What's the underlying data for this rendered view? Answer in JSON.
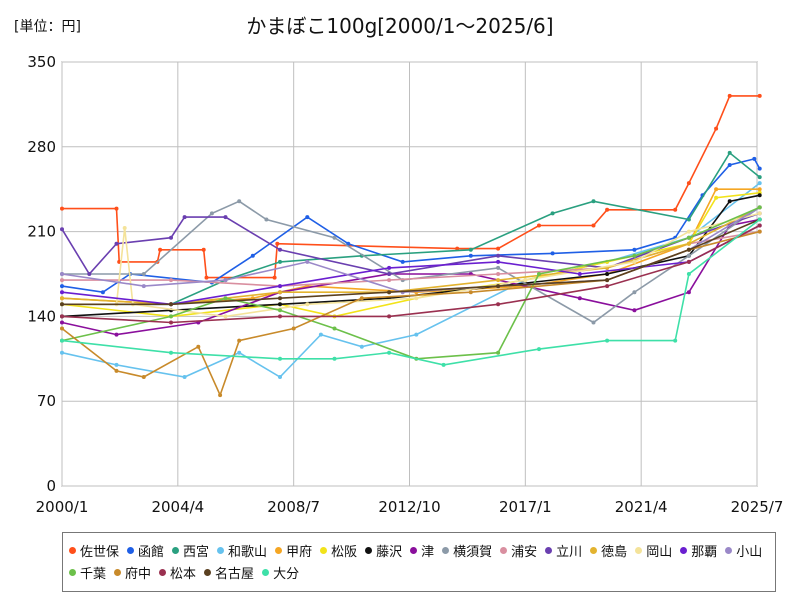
{
  "chart_data": {
    "type": "line",
    "title": "かまぼこ100g[2000/1～2025/6]",
    "unit_label": "[単位：円]",
    "xlabel": "",
    "ylabel": "",
    "x_ticks": [
      "2000/1",
      "2004/4",
      "2008/7",
      "2012/10",
      "2017/1",
      "2021/4",
      "2025/7"
    ],
    "y_ticks": [
      0,
      70,
      140,
      210,
      280,
      350
    ],
    "xlim": [
      "2000/1",
      "2025/7"
    ],
    "ylim": [
      0,
      350
    ],
    "grid": true,
    "legend_position": "bottom",
    "series": [
      {
        "name": "佐世保",
        "color": "#ff4f1a",
        "values": [
          [
            2000.0,
            229
          ],
          [
            2002.0,
            229
          ],
          [
            2002.1,
            185
          ],
          [
            2003.5,
            185
          ],
          [
            2003.6,
            195
          ],
          [
            2005.2,
            195
          ],
          [
            2005.3,
            172
          ],
          [
            2007.8,
            172
          ],
          [
            2007.9,
            200
          ],
          [
            2014.5,
            196
          ],
          [
            2016.0,
            196
          ],
          [
            2017.5,
            215
          ],
          [
            2019.5,
            215
          ],
          [
            2020.0,
            228
          ],
          [
            2022.5,
            228
          ],
          [
            2023.0,
            250
          ],
          [
            2024.0,
            295
          ],
          [
            2024.5,
            322
          ],
          [
            2025.6,
            322
          ]
        ]
      },
      {
        "name": "函館",
        "color": "#1f5fe6",
        "values": [
          [
            2000.0,
            165
          ],
          [
            2001.5,
            160
          ],
          [
            2002.5,
            175
          ],
          [
            2005.5,
            168
          ],
          [
            2007.0,
            190
          ],
          [
            2009.0,
            222
          ],
          [
            2010.5,
            200
          ],
          [
            2012.5,
            185
          ],
          [
            2015.0,
            190
          ],
          [
            2018.0,
            192
          ],
          [
            2021.0,
            195
          ],
          [
            2022.5,
            205
          ],
          [
            2023.5,
            240
          ],
          [
            2024.5,
            265
          ],
          [
            2025.4,
            270
          ],
          [
            2025.6,
            262
          ]
        ]
      },
      {
        "name": "西宮",
        "color": "#2aa080",
        "values": [
          [
            2000.0,
            150
          ],
          [
            2004.0,
            150
          ],
          [
            2006.0,
            170
          ],
          [
            2008.0,
            185
          ],
          [
            2011.0,
            190
          ],
          [
            2015.0,
            195
          ],
          [
            2018.0,
            225
          ],
          [
            2019.5,
            235
          ],
          [
            2023.0,
            220
          ],
          [
            2024.5,
            275
          ],
          [
            2025.6,
            255
          ]
        ]
      },
      {
        "name": "和歌山",
        "color": "#66c2ee",
        "values": [
          [
            2000.0,
            110
          ],
          [
            2002.0,
            100
          ],
          [
            2004.5,
            90
          ],
          [
            2006.5,
            110
          ],
          [
            2008.0,
            90
          ],
          [
            2009.5,
            125
          ],
          [
            2011.0,
            115
          ],
          [
            2013.0,
            125
          ],
          [
            2017.0,
            170
          ],
          [
            2020.0,
            185
          ],
          [
            2023.0,
            205
          ],
          [
            2025.6,
            250
          ]
        ]
      },
      {
        "name": "甲府",
        "color": "#f5a623",
        "values": [
          [
            2000.0,
            155
          ],
          [
            2004.0,
            150
          ],
          [
            2007.0,
            155
          ],
          [
            2009.0,
            165
          ],
          [
            2013.0,
            160
          ],
          [
            2017.0,
            165
          ],
          [
            2020.0,
            175
          ],
          [
            2023.0,
            200
          ],
          [
            2024.0,
            245
          ],
          [
            2025.6,
            245
          ]
        ]
      },
      {
        "name": "松阪",
        "color": "#f2e31a",
        "values": [
          [
            2000.0,
            150
          ],
          [
            2004.0,
            140
          ],
          [
            2008.0,
            150
          ],
          [
            2010.0,
            140
          ],
          [
            2014.0,
            160
          ],
          [
            2017.0,
            170
          ],
          [
            2020.0,
            185
          ],
          [
            2023.0,
            200
          ],
          [
            2024.0,
            238
          ],
          [
            2025.6,
            242
          ]
        ]
      },
      {
        "name": "藤沢",
        "color": "#111111",
        "values": [
          [
            2000.0,
            140
          ],
          [
            2004.0,
            145
          ],
          [
            2008.0,
            150
          ],
          [
            2012.0,
            155
          ],
          [
            2016.0,
            165
          ],
          [
            2020.0,
            175
          ],
          [
            2023.0,
            190
          ],
          [
            2024.5,
            235
          ],
          [
            2025.6,
            240
          ]
        ]
      },
      {
        "name": "津",
        "color": "#8a0f9c",
        "values": [
          [
            2000.0,
            135
          ],
          [
            2002.0,
            125
          ],
          [
            2005.0,
            135
          ],
          [
            2008.0,
            160
          ],
          [
            2012.0,
            175
          ],
          [
            2015.0,
            175
          ],
          [
            2019.0,
            155
          ],
          [
            2021.0,
            145
          ],
          [
            2023.0,
            160
          ],
          [
            2024.5,
            215
          ],
          [
            2025.6,
            220
          ]
        ]
      },
      {
        "name": "横須賀",
        "color": "#8c9aa8",
        "values": [
          [
            2000.0,
            175
          ],
          [
            2003.0,
            175
          ],
          [
            2005.5,
            225
          ],
          [
            2006.5,
            235
          ],
          [
            2007.5,
            220
          ],
          [
            2010.0,
            205
          ],
          [
            2012.5,
            170
          ],
          [
            2016.0,
            180
          ],
          [
            2019.5,
            135
          ],
          [
            2021.0,
            160
          ],
          [
            2023.0,
            190
          ],
          [
            2025.6,
            230
          ]
        ]
      },
      {
        "name": "浦安",
        "color": "#d98fa0",
        "values": [
          [
            2000.0,
            170
          ],
          [
            2004.0,
            170
          ],
          [
            2008.0,
            165
          ],
          [
            2012.0,
            170
          ],
          [
            2016.0,
            175
          ],
          [
            2020.0,
            180
          ],
          [
            2023.0,
            200
          ],
          [
            2025.6,
            210
          ]
        ]
      },
      {
        "name": "立川",
        "color": "#6a3fb0",
        "values": [
          [
            2000.0,
            212
          ],
          [
            2001.0,
            175
          ],
          [
            2002.0,
            200
          ],
          [
            2004.0,
            205
          ],
          [
            2004.5,
            222
          ],
          [
            2006.0,
            222
          ],
          [
            2008.0,
            195
          ],
          [
            2012.0,
            175
          ],
          [
            2016.0,
            190
          ],
          [
            2020.0,
            180
          ],
          [
            2023.0,
            205
          ],
          [
            2025.6,
            225
          ]
        ]
      },
      {
        "name": "徳島",
        "color": "#e3b32f",
        "values": [
          [
            2000.0,
            155
          ],
          [
            2004.0,
            150
          ],
          [
            2008.0,
            160
          ],
          [
            2012.0,
            160
          ],
          [
            2016.0,
            170
          ],
          [
            2020.0,
            180
          ],
          [
            2023.0,
            200
          ],
          [
            2025.6,
            230
          ]
        ]
      },
      {
        "name": "岡山",
        "color": "#f4e39a",
        "values": [
          [
            2000.0,
            150
          ],
          [
            2002.0,
            150
          ],
          [
            2002.3,
            213
          ],
          [
            2002.6,
            150
          ],
          [
            2006.0,
            140
          ],
          [
            2009.0,
            150
          ],
          [
            2013.0,
            155
          ],
          [
            2017.0,
            170
          ],
          [
            2021.0,
            185
          ],
          [
            2023.0,
            210
          ],
          [
            2025.6,
            225
          ]
        ]
      },
      {
        "name": "那覇",
        "color": "#6a1fd0",
        "values": [
          [
            2000.0,
            160
          ],
          [
            2004.0,
            150
          ],
          [
            2008.0,
            165
          ],
          [
            2012.0,
            180
          ],
          [
            2016.0,
            185
          ],
          [
            2019.0,
            175
          ],
          [
            2023.0,
            185
          ],
          [
            2025.6,
            215
          ]
        ]
      },
      {
        "name": "小山",
        "color": "#9a88c8",
        "values": [
          [
            2000.0,
            175
          ],
          [
            2003.0,
            165
          ],
          [
            2006.0,
            170
          ],
          [
            2009.0,
            185
          ],
          [
            2012.5,
            160
          ],
          [
            2016.0,
            165
          ],
          [
            2020.0,
            170
          ],
          [
            2023.0,
            195
          ],
          [
            2025.6,
            230
          ]
        ]
      },
      {
        "name": "千葉",
        "color": "#6cc04a",
        "values": [
          [
            2000.0,
            120
          ],
          [
            2004.0,
            140
          ],
          [
            2006.0,
            155
          ],
          [
            2008.0,
            145
          ],
          [
            2010.0,
            130
          ],
          [
            2013.0,
            105
          ],
          [
            2016.0,
            110
          ],
          [
            2017.5,
            175
          ],
          [
            2021.0,
            190
          ],
          [
            2023.0,
            205
          ],
          [
            2025.6,
            230
          ]
        ]
      },
      {
        "name": "府中",
        "color": "#c88a2a",
        "values": [
          [
            2000.0,
            130
          ],
          [
            2002.0,
            95
          ],
          [
            2003.0,
            90
          ],
          [
            2005.0,
            115
          ],
          [
            2005.8,
            75
          ],
          [
            2006.5,
            120
          ],
          [
            2008.5,
            130
          ],
          [
            2011.0,
            155
          ],
          [
            2015.0,
            160
          ],
          [
            2020.0,
            170
          ],
          [
            2023.0,
            195
          ],
          [
            2025.6,
            210
          ]
        ]
      },
      {
        "name": "松本",
        "color": "#9a3050",
        "values": [
          [
            2000.0,
            140
          ],
          [
            2004.0,
            135
          ],
          [
            2008.0,
            140
          ],
          [
            2012.0,
            140
          ],
          [
            2016.0,
            150
          ],
          [
            2020.0,
            165
          ],
          [
            2023.0,
            185
          ],
          [
            2025.6,
            215
          ]
        ]
      },
      {
        "name": "名古屋",
        "color": "#5a4020",
        "values": [
          [
            2000.0,
            150
          ],
          [
            2004.0,
            150
          ],
          [
            2008.0,
            155
          ],
          [
            2012.0,
            160
          ],
          [
            2016.0,
            165
          ],
          [
            2020.0,
            170
          ],
          [
            2023.0,
            195
          ],
          [
            2025.6,
            220
          ]
        ]
      },
      {
        "name": "大分",
        "color": "#3ee0a8",
        "values": [
          [
            2000.0,
            120
          ],
          [
            2004.0,
            110
          ],
          [
            2008.0,
            105
          ],
          [
            2010.0,
            105
          ],
          [
            2012.0,
            110
          ],
          [
            2014.0,
            100
          ],
          [
            2017.5,
            113
          ],
          [
            2020.0,
            120
          ],
          [
            2022.5,
            120
          ],
          [
            2023.0,
            175
          ],
          [
            2025.6,
            220
          ]
        ]
      }
    ]
  }
}
